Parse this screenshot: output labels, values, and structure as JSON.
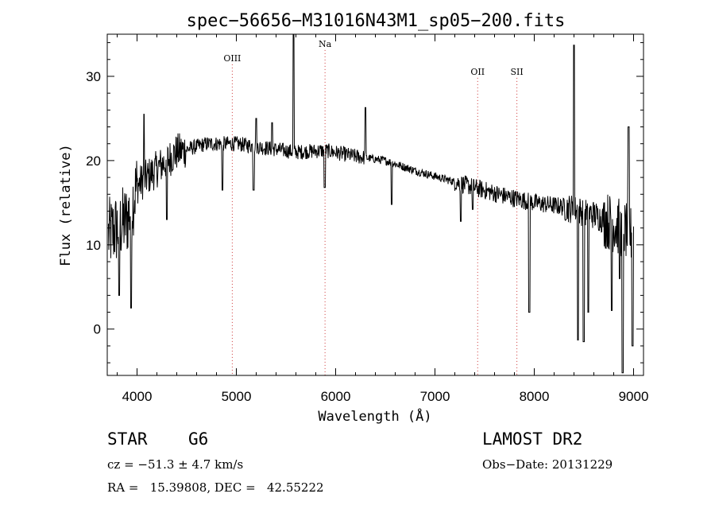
{
  "chart_data": {
    "type": "line",
    "title": "spec−56656−M31016N43M1_sp05−200.fits",
    "xlabel": "Wavelength (Å)",
    "ylabel": "Flux (relative)",
    "xlim": [
      3700,
      9100
    ],
    "ylim": [
      -5.5,
      35
    ],
    "x_ticks": [
      4000,
      5000,
      6000,
      7000,
      8000,
      9000
    ],
    "y_ticks": [
      0,
      10,
      20,
      30
    ],
    "grid": false,
    "line_color": "#000000",
    "marker_color": "#cc3333",
    "line_markers": [
      {
        "label": "OIII",
        "x": 4959,
        "label_y": 31.8
      },
      {
        "label": "Na",
        "x": 5893,
        "label_y": 33.5
      },
      {
        "label": "OII",
        "x": 7430,
        "label_y": 30.2
      },
      {
        "label": "SII",
        "x": 7825,
        "label_y": 30.2
      }
    ],
    "series": [
      {
        "continuum": [
          [
            3700,
            11
          ],
          [
            3900,
            13
          ],
          [
            4000,
            17
          ],
          [
            4200,
            19
          ],
          [
            4400,
            21
          ],
          [
            4700,
            22
          ],
          [
            5000,
            22
          ],
          [
            5300,
            21.5
          ],
          [
            5600,
            21
          ],
          [
            5900,
            21.2
          ],
          [
            6200,
            20.5
          ],
          [
            6500,
            20
          ],
          [
            6800,
            18.8
          ],
          [
            7100,
            17.8
          ],
          [
            7400,
            16.8
          ],
          [
            7700,
            15.8
          ],
          [
            8000,
            15
          ],
          [
            8300,
            14.5
          ],
          [
            8600,
            13.6
          ],
          [
            8800,
            12.5
          ],
          [
            9000,
            11
          ]
        ],
        "features": [
          [
            5577,
            35.0,
            8
          ],
          [
            8400,
            33.7,
            8
          ],
          [
            6300,
            26.3,
            8
          ],
          [
            4070,
            25.5,
            8
          ],
          [
            5200,
            25.0,
            8
          ],
          [
            5360,
            24.5,
            8
          ],
          [
            8950,
            24.0,
            10
          ],
          [
            3940,
            2.5,
            12
          ],
          [
            3820,
            4.0,
            12
          ],
          [
            4300,
            13.0,
            10
          ],
          [
            4860,
            16.5,
            10
          ],
          [
            5175,
            16.5,
            14
          ],
          [
            5890,
            16.8,
            12
          ],
          [
            6563,
            14.8,
            10
          ],
          [
            7260,
            12.8,
            10
          ],
          [
            7380,
            14.2,
            8
          ],
          [
            7950,
            2.0,
            10
          ],
          [
            8440,
            -1.3,
            10
          ],
          [
            8498,
            -1.5,
            10
          ],
          [
            8545,
            2.0,
            10
          ],
          [
            8780,
            2.2,
            10
          ],
          [
            8890,
            -5.2,
            10
          ],
          [
            8860,
            6.0,
            10
          ],
          [
            8990,
            -2.0,
            10
          ]
        ]
      }
    ]
  },
  "info": {
    "object_class": "STAR",
    "subclass": "G6",
    "survey": "LAMOST DR2",
    "velocity": "cz = −51.3 ± 4.7 km/s",
    "obs_date": "Obs−Date: 20131229",
    "coords": "RA =   15.39808, DEC =   42.55222"
  }
}
